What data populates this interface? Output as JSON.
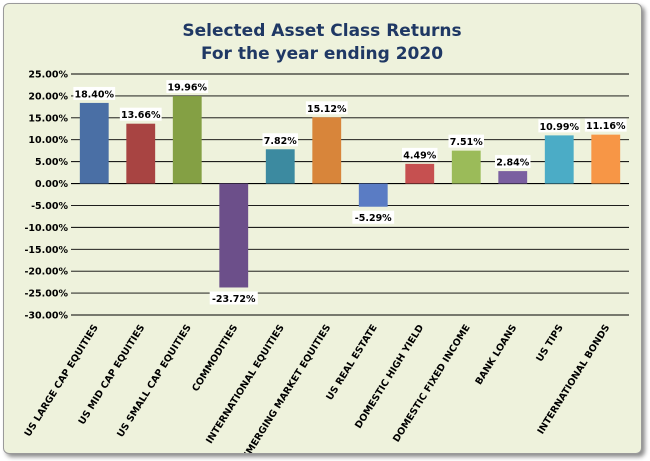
{
  "chart_data": {
    "type": "bar",
    "title": "Selected Asset Class Returns",
    "subtitle": "For the year ending 2020",
    "categories": [
      "US LARGE CAP EQUITIES",
      "US MID CAP EQUITIES",
      "US SMALL CAP EQUITIES",
      "COMMODITIES",
      "INTERNATIONAL EQUITIES",
      "EMERGING MARKET EQUITIES",
      "US REAL ESTATE",
      "DOMESTIC HIGH YIELD",
      "DOMESTIC FIXED INCOME",
      "BANK LOANS",
      "US TIPS",
      "INTERNATIONAL BONDS"
    ],
    "values": [
      18.4,
      13.66,
      19.96,
      -23.72,
      7.82,
      15.12,
      -5.29,
      4.49,
      7.51,
      2.84,
      10.99,
      11.16
    ],
    "data_labels": [
      "18.40%",
      "13.66%",
      "19.96%",
      "-23.72%",
      "7.82%",
      "15.12%",
      "-5.29%",
      "4.49%",
      "7.51%",
      "2.84%",
      "10.99%",
      "11.16%"
    ],
    "colors": [
      "#4a6fa5",
      "#a84442",
      "#84a044",
      "#6c4f8a",
      "#3c8aa0",
      "#d8853a",
      "#5a7cc4",
      "#c65050",
      "#9bbb59",
      "#7a5fa0",
      "#4bacc6",
      "#f79646"
    ],
    "ylim": [
      -30,
      25
    ],
    "yticks": [
      "25.00%",
      "20.00%",
      "15.00%",
      "10.00%",
      "5.00%",
      "0.00%",
      "-5.00%",
      "-10.00%",
      "-15.00%",
      "-20.00%",
      "-25.00%",
      "-30.00%"
    ],
    "grid": true,
    "legend": "none"
  }
}
